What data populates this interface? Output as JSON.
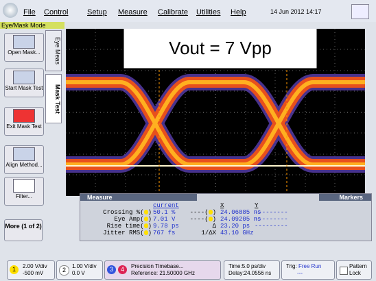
{
  "menu": {
    "items": [
      "File",
      "Control",
      "Setup",
      "Measure",
      "Calibrate",
      "Utilities",
      "Help"
    ],
    "datetime": "14 Jun 2012 14:17"
  },
  "mode": "Eye/Mask Mode",
  "sidebar": {
    "buttons": [
      "Open Mask...",
      "Start Mask Test",
      "Exit Mask Test",
      "Align Method...",
      "Filter..."
    ],
    "more": "More (1 of 2)"
  },
  "tabs": [
    "Eye Meas",
    "Mask Test"
  ],
  "annotation": "Vout = 7 Vpp",
  "measure_panel": {
    "title": "Measure",
    "column_header": "current",
    "rows": [
      {
        "name": "Crossing %",
        "value": "50.1 %"
      },
      {
        "name": "Eye Amp",
        "value": "7.01 V"
      },
      {
        "name": "Rise time",
        "value": "9.78 ps"
      },
      {
        "name": "Jitter RMS",
        "value": "767 fs"
      }
    ]
  },
  "markers_panel": {
    "title": "Markers",
    "headers": [
      "X",
      "Y"
    ],
    "rows": [
      {
        "name": "----",
        "x": "24.06885 ns",
        "y": "---------"
      },
      {
        "name": "----",
        "x": "24.09205 ns",
        "y": "---------"
      },
      {
        "name": "Δ",
        "x": "23.20 ps",
        "y": "---------"
      },
      {
        "name": "1/ΔX",
        "x": "43.10 GHz"
      }
    ]
  },
  "status_bar": {
    "channels": [
      {
        "number": "1",
        "scale": "2.00 V/div",
        "offset": "-500 mV"
      },
      {
        "number": "2",
        "scale": "1.00 V/div",
        "offset": "0.0 V"
      }
    ],
    "timebase": {
      "numbers": [
        "3",
        "4"
      ],
      "title": "Precision Timebase...",
      "reference": "Reference: 21.50000 GHz"
    },
    "time": {
      "scale": "Time:5.0 ps/div",
      "delay": "Delay:24.0556 ns"
    },
    "trigger": {
      "label": "Trig:",
      "mode": "Free Run",
      "extra": "---"
    },
    "pattern": [
      "Pattern",
      "Lock"
    ]
  }
}
